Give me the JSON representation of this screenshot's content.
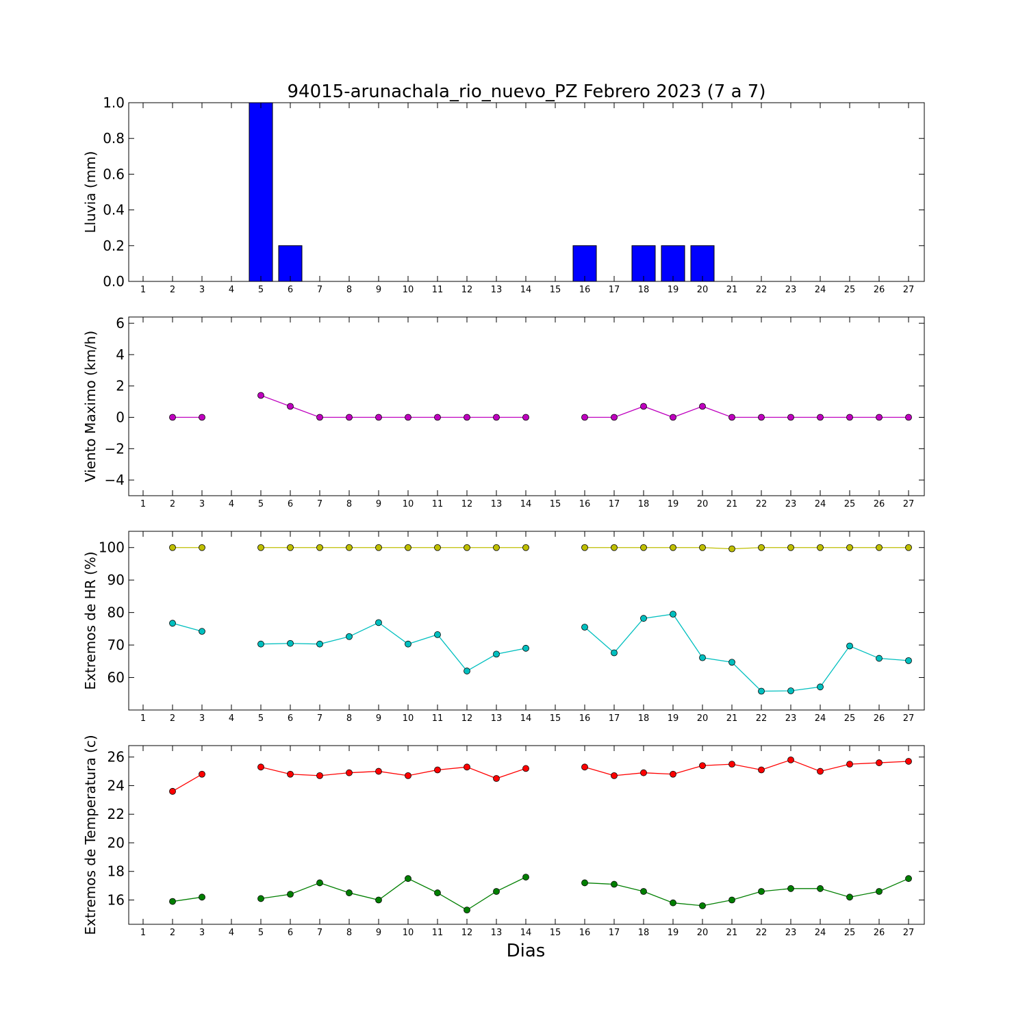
{
  "title": "94015-arunachala_rio_nuevo_PZ Febrero 2023  (7 a 7)",
  "xlabel": "Dias",
  "days": [
    "1",
    "2",
    "3",
    "4",
    "5",
    "6",
    "7",
    "8",
    "9",
    "10",
    "11",
    "12",
    "13",
    "14",
    "15",
    "16",
    "17",
    "18",
    "19",
    "20",
    "21",
    "22",
    "23",
    "24",
    "25",
    "26",
    "27"
  ],
  "chart_data": [
    {
      "type": "bar",
      "ylabel": "Lluvia (mm)",
      "ylim": [
        0,
        1.0
      ],
      "yticks": [
        0.0,
        0.2,
        0.4,
        0.6,
        0.8,
        1.0
      ],
      "ytick_labels": [
        "0.0",
        "0.2",
        "0.4",
        "0.6",
        "0.8",
        "1.0"
      ],
      "grid": false,
      "series": [
        {
          "color": "#0000ff",
          "x": [
            1,
            2,
            3,
            4,
            5,
            6,
            7,
            8,
            9,
            10,
            11,
            12,
            13,
            14,
            15,
            16,
            17,
            18,
            19,
            20,
            21,
            22,
            23,
            24,
            25,
            26,
            27
          ],
          "values": [
            0,
            0,
            0,
            0,
            1.0,
            0.2,
            0,
            0,
            0,
            0,
            0,
            0,
            0,
            0,
            0,
            0.2,
            0,
            0.2,
            0.2,
            0.2,
            0,
            0,
            0,
            0,
            0,
            0,
            0
          ]
        }
      ]
    },
    {
      "type": "line",
      "ylabel": "Viento Maximo (km/h)",
      "ylim": [
        -5,
        6.4
      ],
      "yticks": [
        -4,
        -2,
        0,
        2,
        4,
        6
      ],
      "ytick_labels": [
        "−4",
        "−2",
        "0",
        "2",
        "4",
        "6"
      ],
      "grid": false,
      "series": [
        {
          "color": "#bf00bf",
          "x": [
            1,
            2,
            3,
            4,
            5,
            6,
            7,
            8,
            9,
            10,
            11,
            12,
            13,
            14,
            15,
            16,
            17,
            18,
            19,
            20,
            21,
            22,
            23,
            24,
            25,
            26,
            27
          ],
          "values": [
            null,
            0,
            0,
            null,
            1.4,
            0.7,
            0,
            0,
            0,
            0,
            0,
            0,
            0,
            0,
            null,
            0,
            0,
            0.7,
            0,
            0.7,
            0,
            0,
            0,
            0,
            0,
            0,
            0
          ]
        }
      ]
    },
    {
      "type": "line",
      "ylabel": "Extremos de HR (%)",
      "ylim": [
        50,
        105
      ],
      "yticks": [
        60,
        70,
        80,
        90,
        100
      ],
      "ytick_labels": [
        "60",
        "70",
        "80",
        "90",
        "100"
      ],
      "grid": false,
      "series": [
        {
          "color": "#bfbf00",
          "x": [
            1,
            2,
            3,
            4,
            5,
            6,
            7,
            8,
            9,
            10,
            11,
            12,
            13,
            14,
            15,
            16,
            17,
            18,
            19,
            20,
            21,
            22,
            23,
            24,
            25,
            26,
            27
          ],
          "values": [
            null,
            100,
            100,
            null,
            100,
            100,
            100,
            100,
            100,
            100,
            100,
            100,
            100,
            100,
            null,
            100,
            100,
            100,
            100,
            100,
            99.6,
            100,
            100,
            100,
            100,
            100,
            100
          ]
        },
        {
          "color": "#00bfbf",
          "x": [
            1,
            2,
            3,
            4,
            5,
            6,
            7,
            8,
            9,
            10,
            11,
            12,
            13,
            14,
            15,
            16,
            17,
            18,
            19,
            20,
            21,
            22,
            23,
            24,
            25,
            26,
            27
          ],
          "values": [
            null,
            76.7,
            74.2,
            null,
            70.3,
            70.5,
            70.3,
            72.6,
            76.9,
            70.3,
            73.2,
            62.0,
            67.2,
            69.0,
            null,
            75.5,
            67.6,
            78.2,
            79.5,
            66.1,
            64.7,
            55.8,
            55.9,
            57.1,
            69.7,
            65.9,
            65.2
          ]
        }
      ]
    },
    {
      "type": "line",
      "ylabel": "Extremos de Temperatura (c)",
      "ylim": [
        14.3,
        26.8
      ],
      "yticks": [
        16,
        18,
        20,
        22,
        24,
        26
      ],
      "ytick_labels": [
        "16",
        "18",
        "20",
        "22",
        "24",
        "26"
      ],
      "grid": false,
      "series": [
        {
          "color": "#ff0000",
          "x": [
            1,
            2,
            3,
            4,
            5,
            6,
            7,
            8,
            9,
            10,
            11,
            12,
            13,
            14,
            15,
            16,
            17,
            18,
            19,
            20,
            21,
            22,
            23,
            24,
            25,
            26,
            27
          ],
          "values": [
            null,
            23.6,
            24.8,
            null,
            25.3,
            24.8,
            24.7,
            24.9,
            25.0,
            24.7,
            25.1,
            25.3,
            24.5,
            25.2,
            null,
            25.3,
            24.7,
            24.9,
            24.8,
            25.4,
            25.5,
            25.1,
            25.8,
            25.0,
            25.5,
            25.6,
            25.7
          ]
        },
        {
          "color": "#007f00",
          "x": [
            1,
            2,
            3,
            4,
            5,
            6,
            7,
            8,
            9,
            10,
            11,
            12,
            13,
            14,
            15,
            16,
            17,
            18,
            19,
            20,
            21,
            22,
            23,
            24,
            25,
            26,
            27
          ],
          "values": [
            null,
            15.9,
            16.2,
            null,
            16.1,
            16.4,
            17.2,
            16.5,
            16.0,
            17.5,
            16.5,
            15.3,
            16.6,
            17.6,
            null,
            17.2,
            17.1,
            16.6,
            15.8,
            15.6,
            16.0,
            16.6,
            16.8,
            16.8,
            16.2,
            16.6,
            17.5
          ]
        }
      ]
    }
  ]
}
